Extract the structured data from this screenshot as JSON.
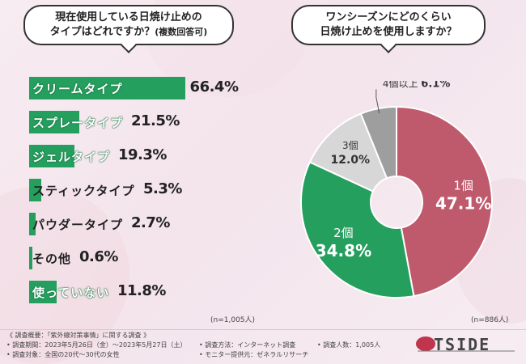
{
  "questions": {
    "q1_line1": "現在使用している日焼け止めの",
    "q1_line2": "タイプはどれですか？",
    "q1_note": "(複数回答可)",
    "q2_line1": "ワンシーズンにどのくらい",
    "q2_line2": "日焼け止めを使用しますか？"
  },
  "chart_data": [
    {
      "type": "bar",
      "orientation": "horizontal",
      "title": "現在使用している日焼け止めのタイプはどれですか？(複数回答可)",
      "categories": [
        "クリームタイプ",
        "スプレータイプ",
        "ジェルタイプ",
        "スティックタイプ",
        "パウダータイプ",
        "その他",
        "使っていない"
      ],
      "values": [
        66.4,
        21.5,
        19.3,
        5.3,
        2.7,
        0.6,
        11.8
      ],
      "value_labels": [
        "66.4%",
        "21.5%",
        "19.3%",
        "5.3%",
        "2.7%",
        "0.6%",
        "11.8%"
      ],
      "unit": "%",
      "xlim": [
        0,
        100
      ],
      "color": "#249f5e",
      "n_note": "(n=1,005人)"
    },
    {
      "type": "pie",
      "donut": true,
      "title": "ワンシーズンにどのくらい日焼け止めを使用しますか？",
      "slices": [
        {
          "label": "1個",
          "value": 47.1,
          "value_label": "47.1%",
          "color": "#bf5a6c"
        },
        {
          "label": "2個",
          "value": 34.8,
          "value_label": "34.8%",
          "color": "#249f5e"
        },
        {
          "label": "3個",
          "value": 12.0,
          "value_label": "12.0%",
          "color": "#d7d7d7"
        },
        {
          "label": "4個以上",
          "value": 6.1,
          "value_label": "6.1%",
          "color": "#9e9e9e"
        }
      ],
      "n_note": "(n=886人)"
    }
  ],
  "footer": {
    "overview": "《 調査概要：「紫外線対策事情」に関する調査 》",
    "period": "• 調査期間：2023年5月26日（金）〜2023年5月27日（土）",
    "target": "• 調査対象：全国の20代〜30代の女性",
    "method": "• 調査方法：インターネット調査",
    "provider": "• モニター提供元：ゼネラルリサーチ",
    "count": "• 調査人数：1,005人"
  },
  "logo": {
    "text": "TSIDE"
  }
}
